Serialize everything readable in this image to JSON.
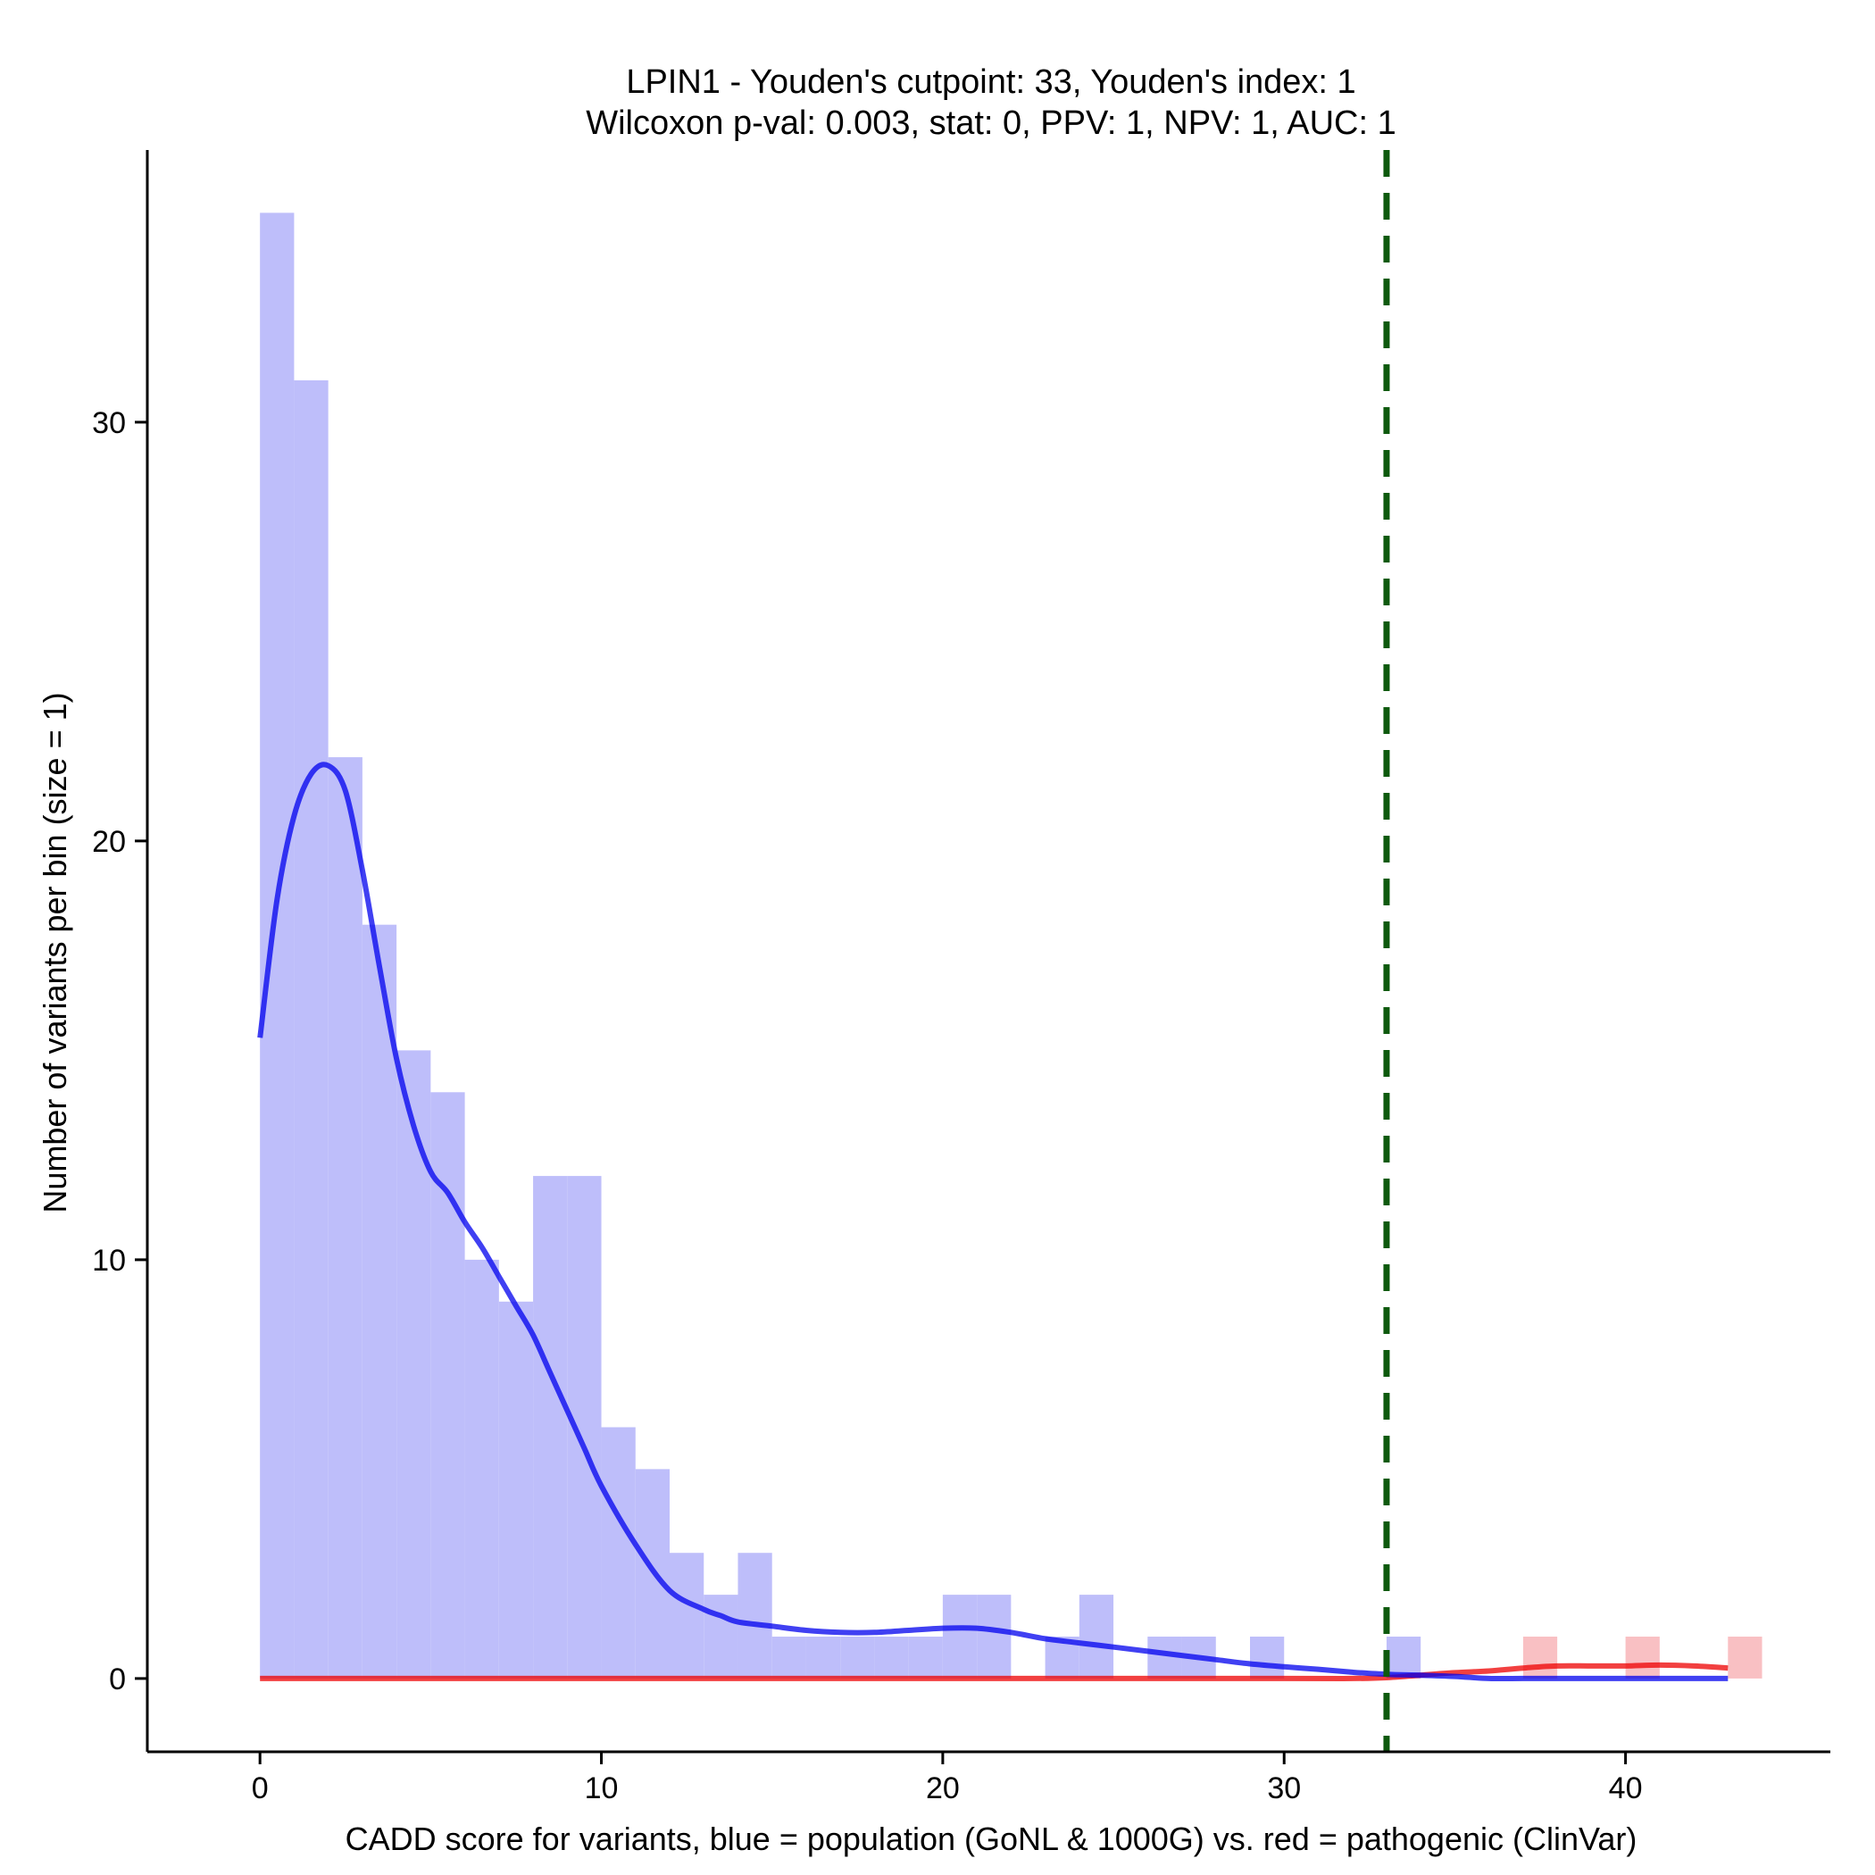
{
  "chart_data": {
    "type": "bar",
    "title": "LPIN1 - Youden's cutpoint: 33, Youden's index: 1",
    "subtitle": "Wilcoxon p-val: 0.003, stat: 0, PPV: 1, NPV: 1, AUC: 1",
    "xlabel": "CADD score for variants, blue = population (GoNL & 1000G) vs. red = pathogenic (ClinVar)",
    "ylabel": "Number of variants per bin (size = 1)",
    "xlim": [
      -3.3,
      46
    ],
    "ylim": [
      -1.75,
      36.5
    ],
    "xticks": [
      0,
      10,
      20,
      30,
      40
    ],
    "yticks": [
      0,
      10,
      20,
      30
    ],
    "grid": false,
    "legend": "none",
    "cutpoint": 33,
    "colors": {
      "population": "#0000ee",
      "pathogenic": "#ee0000",
      "population_bar": "#bebefa",
      "pathogenic_bar": "#f9c0c3",
      "cutpoint": "#0e5a0e"
    },
    "series": [
      {
        "key": "population",
        "bin_width": 1,
        "bins": [
          {
            "x": 0,
            "count": 35
          },
          {
            "x": 1,
            "count": 31
          },
          {
            "x": 2,
            "count": 22
          },
          {
            "x": 3,
            "count": 18
          },
          {
            "x": 4,
            "count": 15
          },
          {
            "x": 5,
            "count": 14
          },
          {
            "x": 6,
            "count": 10
          },
          {
            "x": 7,
            "count": 9
          },
          {
            "x": 8,
            "count": 12
          },
          {
            "x": 9,
            "count": 12
          },
          {
            "x": 10,
            "count": 6
          },
          {
            "x": 11,
            "count": 5
          },
          {
            "x": 12,
            "count": 3
          },
          {
            "x": 13,
            "count": 2
          },
          {
            "x": 14,
            "count": 3
          },
          {
            "x": 15,
            "count": 1
          },
          {
            "x": 16,
            "count": 1
          },
          {
            "x": 17,
            "count": 1
          },
          {
            "x": 18,
            "count": 1
          },
          {
            "x": 19,
            "count": 1
          },
          {
            "x": 20,
            "count": 2
          },
          {
            "x": 21,
            "count": 2
          },
          {
            "x": 23,
            "count": 1
          },
          {
            "x": 24,
            "count": 2
          },
          {
            "x": 26,
            "count": 1
          },
          {
            "x": 27,
            "count": 1
          },
          {
            "x": 29,
            "count": 1
          },
          {
            "x": 33,
            "count": 1
          }
        ],
        "density_x": [
          0,
          0.5,
          1,
          1.5,
          2,
          2.5,
          3,
          3.5,
          4,
          4.5,
          5,
          5.5,
          6,
          6.5,
          7,
          7.5,
          8,
          8.5,
          9,
          9.5,
          10,
          11,
          12,
          13,
          13.5,
          14,
          15,
          16,
          17,
          18,
          19,
          20,
          21,
          22,
          23,
          24,
          25,
          26,
          27,
          28,
          29,
          30,
          31,
          32,
          33,
          34,
          35,
          36,
          37,
          38,
          39,
          40,
          41,
          42,
          43
        ],
        "density_y": [
          15.3,
          18.6,
          20.6,
          21.6,
          21.8,
          21.2,
          19.3,
          17.0,
          14.8,
          13.2,
          12.1,
          11.6,
          10.9,
          10.3,
          9.6,
          8.9,
          8.2,
          7.3,
          6.4,
          5.5,
          4.6,
          3.2,
          2.1,
          1.65,
          1.5,
          1.35,
          1.25,
          1.15,
          1.1,
          1.1,
          1.15,
          1.2,
          1.2,
          1.1,
          0.95,
          0.85,
          0.75,
          0.65,
          0.55,
          0.45,
          0.35,
          0.28,
          0.22,
          0.15,
          0.1,
          0.08,
          0.05,
          0.0,
          0.0,
          0.0,
          0.0,
          0.0,
          0.0,
          0.0,
          0.0
        ]
      },
      {
        "key": "pathogenic",
        "bin_width": 1,
        "bins": [
          {
            "x": 37,
            "count": 1
          },
          {
            "x": 40,
            "count": 1
          },
          {
            "x": 43,
            "count": 1
          }
        ],
        "density_x": [
          0,
          10,
          20,
          30,
          32,
          33,
          34,
          35,
          36,
          37,
          38,
          39,
          40,
          41,
          42,
          43
        ],
        "density_y": [
          0,
          0,
          0,
          0,
          0,
          0.02,
          0.08,
          0.14,
          0.18,
          0.25,
          0.3,
          0.3,
          0.3,
          0.32,
          0.3,
          0.25
        ]
      }
    ]
  }
}
